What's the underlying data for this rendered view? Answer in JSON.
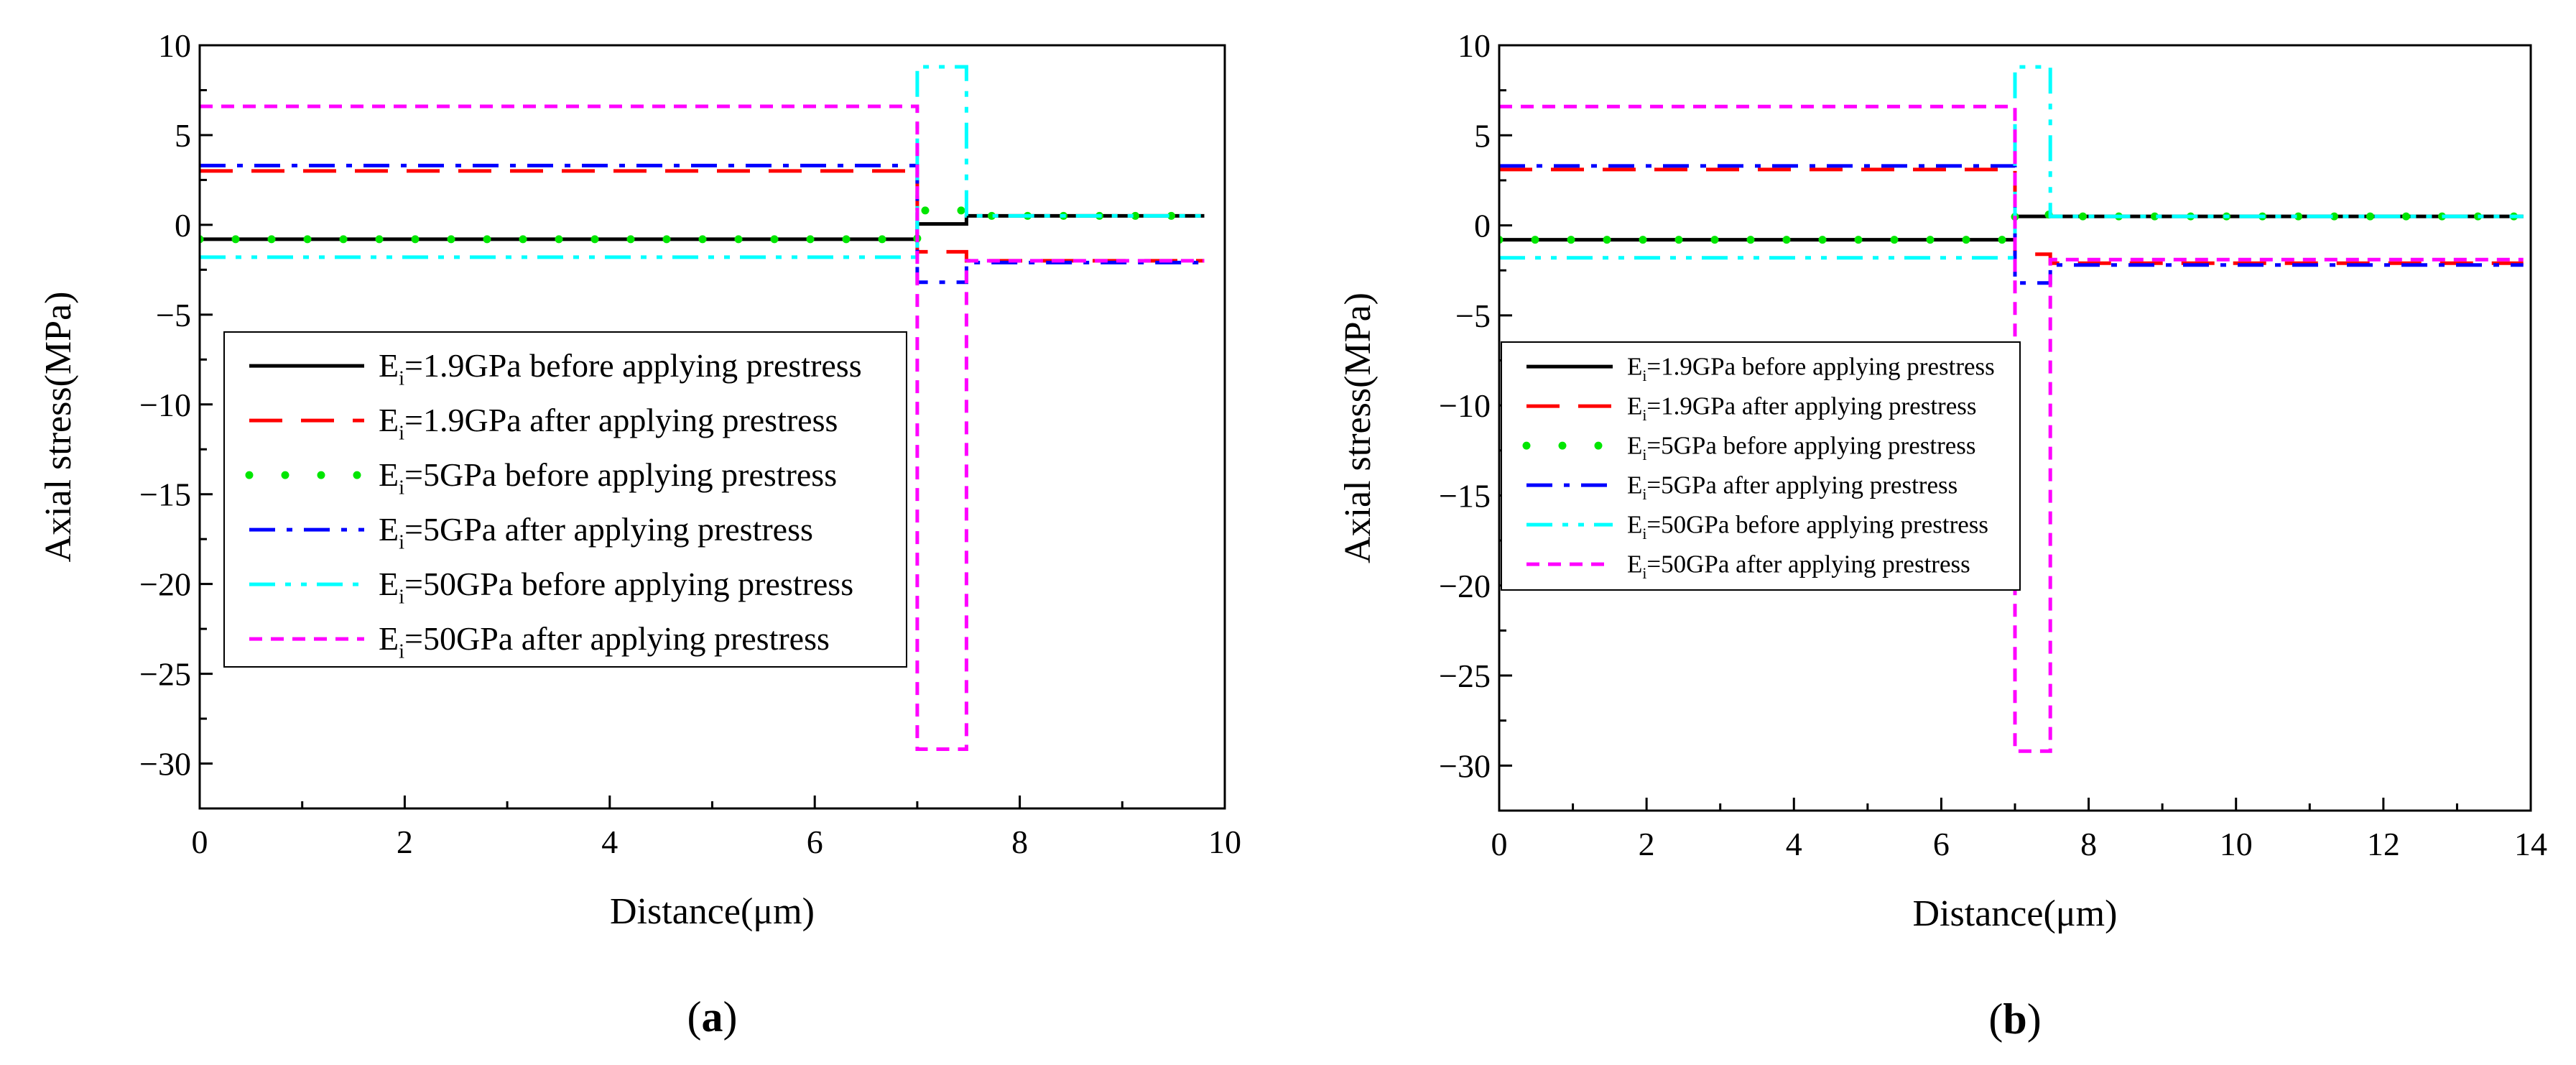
{
  "colors": {
    "black": "#000000",
    "red": "#ff0000",
    "green": "#00e600",
    "blue": "#0000ff",
    "cyan": "#00ffff",
    "magenta": "#ff00ff"
  },
  "chart_data": [
    {
      "type": "line",
      "panel_label": "(a)",
      "panel_letter": "a",
      "xlabel": "Distance(μm)",
      "ylabel": "Axial stress(MPa)",
      "xlim": [
        0,
        10
      ],
      "ylim": [
        -32.5,
        10
      ],
      "xticks": [
        "0",
        "2",
        "4",
        "6",
        "8",
        "10"
      ],
      "yticks": [
        "10",
        "5",
        "0",
        "−5",
        "−10",
        "−15",
        "−20",
        "−25",
        "−30"
      ],
      "legend_position": "center-left",
      "series": [
        {
          "name": "Ei=1.9GPa before applying prestress",
          "label_prefix": "E",
          "label_sub": "i",
          "label_rest": "=1.9GPa before applying prestress",
          "color": "#000000",
          "style": "solid",
          "x": [
            0,
            7.0,
            7.0,
            7.48,
            7.48,
            9.8
          ],
          "y": [
            -0.8,
            -0.8,
            0.05,
            0.05,
            0.5,
            0.5
          ]
        },
        {
          "name": "Ei=1.9GPa after applying prestress",
          "label_prefix": "E",
          "label_sub": "i",
          "label_rest": "=1.9GPa after applying prestress",
          "color": "#ff0000",
          "style": "longdash",
          "x": [
            0,
            7.0,
            7.0,
            7.48,
            7.48,
            9.8
          ],
          "y": [
            3.0,
            3.0,
            -1.5,
            -1.5,
            -2.0,
            -2.0
          ]
        },
        {
          "name": "Ei=5GPa before applying prestress",
          "label_prefix": "E",
          "label_sub": "i",
          "label_rest": "=5GPa before applying prestress",
          "color": "#00e600",
          "style": "dots",
          "x": [
            0,
            7.0,
            7.0,
            7.48,
            7.48,
            9.8
          ],
          "y": [
            -0.8,
            -0.8,
            0.8,
            0.8,
            0.5,
            0.5
          ]
        },
        {
          "name": "Ei=5GPa after applying prestress",
          "label_prefix": "E",
          "label_sub": "i",
          "label_rest": "=5GPa after applying prestress",
          "color": "#0000ff",
          "style": "dashdot",
          "x": [
            0,
            7.0,
            7.0,
            7.48,
            7.48,
            9.8
          ],
          "y": [
            3.3,
            3.3,
            -3.2,
            -3.2,
            -2.1,
            -2.1
          ]
        },
        {
          "name": "Ei=50GPa before applying prestress",
          "label_prefix": "E",
          "label_sub": "i",
          "label_rest": "=50GPa before applying prestress",
          "color": "#00ffff",
          "style": "dashdotdot",
          "x": [
            0,
            7.0,
            7.0,
            7.48,
            7.48,
            9.8
          ],
          "y": [
            -1.8,
            -1.8,
            8.8,
            8.8,
            0.5,
            0.5
          ]
        },
        {
          "name": "Ei=50GPa after applying prestress",
          "label_prefix": "E",
          "label_sub": "i",
          "label_rest": "=50GPa after applying prestress",
          "color": "#ff00ff",
          "style": "shortdash",
          "x": [
            0,
            7.0,
            7.0,
            7.48,
            7.48,
            9.8
          ],
          "y": [
            6.6,
            6.6,
            -29.2,
            -29.2,
            -2.0,
            -2.0
          ]
        }
      ]
    },
    {
      "type": "line",
      "panel_label": "(b)",
      "panel_letter": "b",
      "xlabel": "Distance(μm)",
      "ylabel": "Axial stress(MPa)",
      "xlim": [
        0,
        14
      ],
      "ylim": [
        -32.5,
        10
      ],
      "xticks": [
        "0",
        "2",
        "4",
        "6",
        "8",
        "10",
        "12",
        "14"
      ],
      "yticks": [
        "10",
        "5",
        "0",
        "−5",
        "−10",
        "−15",
        "−20",
        "−25",
        "−30"
      ],
      "legend_position": "center-left",
      "series": [
        {
          "name": "Ei=1.9GPa before applying prestress",
          "label_prefix": "E",
          "label_sub": "i",
          "label_rest": "=1.9GPa before applying prestress",
          "color": "#000000",
          "style": "solid",
          "x": [
            0,
            7.0,
            7.0,
            7.48,
            7.48,
            13.9
          ],
          "y": [
            -0.8,
            -0.8,
            0.5,
            0.5,
            0.5,
            0.5
          ]
        },
        {
          "name": "Ei=1.9GPa after applying prestress",
          "label_prefix": "E",
          "label_sub": "i",
          "label_rest": "=1.9GPa after applying prestress",
          "color": "#ff0000",
          "style": "longdash",
          "x": [
            0,
            7.0,
            7.0,
            7.48,
            7.48,
            13.9
          ],
          "y": [
            3.1,
            3.1,
            -1.6,
            -1.6,
            -2.1,
            -2.1
          ]
        },
        {
          "name": "Ei=5GPa before applying prestress",
          "label_prefix": "E",
          "label_sub": "i",
          "label_rest": "=5GPa before applying prestress",
          "color": "#00e600",
          "style": "dots",
          "x": [
            0,
            7.0,
            7.0,
            7.48,
            7.48,
            13.9
          ],
          "y": [
            -0.8,
            -0.8,
            0.6,
            0.6,
            0.5,
            0.5
          ]
        },
        {
          "name": "Ei=5GPa after applying prestress",
          "label_prefix": "E",
          "label_sub": "i",
          "label_rest": "=5GPa after applying prestress",
          "color": "#0000ff",
          "style": "dashdot",
          "x": [
            0,
            7.0,
            7.0,
            7.48,
            7.48,
            13.9
          ],
          "y": [
            3.3,
            3.3,
            -3.2,
            -3.2,
            -2.2,
            -2.2
          ]
        },
        {
          "name": "Ei=50GPa before applying prestress",
          "label_prefix": "E",
          "label_sub": "i",
          "label_rest": "=50GPa before applying prestress",
          "color": "#00ffff",
          "style": "dashdotdot",
          "x": [
            0,
            7.0,
            7.0,
            7.48,
            7.48,
            13.9
          ],
          "y": [
            -1.8,
            -1.8,
            8.8,
            8.8,
            0.5,
            0.5
          ]
        },
        {
          "name": "Ei=50GPa after applying prestress",
          "label_prefix": "E",
          "label_sub": "i",
          "label_rest": "=50GPa after applying prestress",
          "color": "#ff00ff",
          "style": "shortdash",
          "x": [
            0,
            7.0,
            7.0,
            7.48,
            7.48,
            13.9
          ],
          "y": [
            6.6,
            6.6,
            -29.2,
            -29.2,
            -1.9,
            -1.9
          ]
        }
      ]
    }
  ]
}
